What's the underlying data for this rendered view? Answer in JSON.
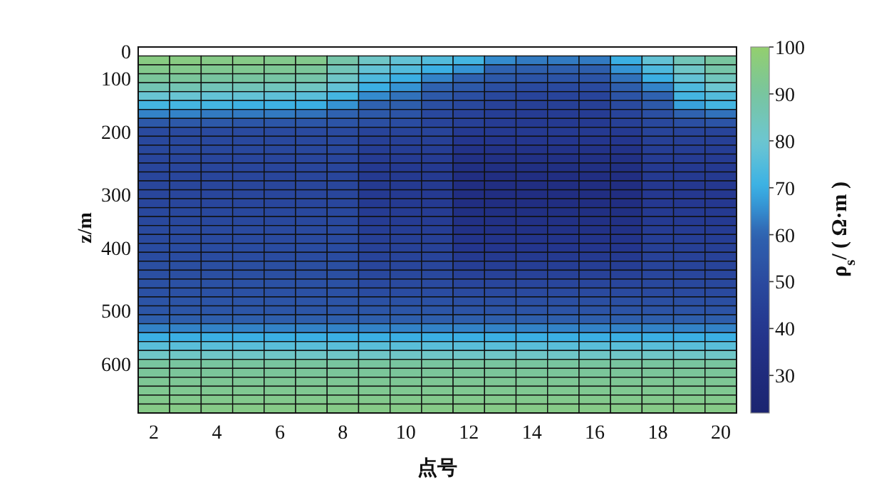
{
  "chart_data": {
    "type": "heatmap",
    "xlabel": "点号",
    "ylabel": "z/m",
    "clabel": "ρ$_{s}$/ ( Ω·m )",
    "categories": [
      "2",
      null,
      "4",
      null,
      "6",
      null,
      "8",
      null,
      "10",
      null,
      "12",
      null,
      "14",
      null,
      "16",
      null,
      "18",
      null,
      "20"
    ],
    "y_categories": [
      "0",
      null,
      null,
      "100",
      null,
      null,
      null,
      null,
      null,
      "200",
      null,
      null,
      null,
      null,
      null,
      null,
      "300",
      null,
      null,
      null,
      null,
      null,
      "400",
      null,
      null,
      null,
      null,
      null,
      null,
      "500",
      null,
      null,
      null,
      null,
      null,
      "600",
      null,
      null,
      null,
      null,
      null
    ],
    "clim": [
      22,
      100
    ],
    "cticks": [
      30,
      40,
      50,
      60,
      70,
      80,
      90,
      100
    ],
    "cells": [
      [
        null,
        null,
        null,
        null,
        null,
        null,
        null,
        null,
        null,
        null,
        null,
        null,
        null,
        null,
        null,
        null,
        null,
        null,
        null
      ],
      [
        96,
        96,
        95,
        95,
        94,
        94,
        88,
        82,
        78,
        75,
        72,
        65,
        63,
        63,
        63,
        70,
        78,
        85,
        90
      ],
      [
        94,
        94,
        93,
        93,
        92,
        91,
        85,
        78,
        75,
        70,
        66,
        60,
        58,
        58,
        58,
        66,
        74,
        82,
        88
      ],
      [
        91,
        91,
        90,
        90,
        89,
        88,
        82,
        74,
        70,
        64,
        60,
        56,
        54,
        54,
        54,
        62,
        70,
        78,
        84
      ],
      [
        86,
        86,
        85,
        85,
        84,
        83,
        78,
        70,
        66,
        60,
        56,
        52,
        50,
        50,
        50,
        58,
        64,
        74,
        80
      ],
      [
        79,
        79,
        78,
        78,
        77,
        76,
        72,
        65,
        62,
        56,
        52,
        49,
        47,
        47,
        47,
        54,
        60,
        72,
        75
      ],
      [
        72,
        72,
        72,
        71,
        71,
        70,
        66,
        60,
        58,
        52,
        49,
        46,
        45,
        45,
        45,
        50,
        56,
        68,
        72
      ],
      [
        64,
        64,
        63,
        63,
        63,
        62,
        60,
        56,
        54,
        49,
        46,
        44,
        43,
        43,
        43,
        47,
        52,
        60,
        62
      ],
      [
        56,
        56,
        56,
        55,
        55,
        55,
        54,
        52,
        51,
        47,
        45,
        43,
        42,
        42,
        42,
        45,
        49,
        52,
        54
      ],
      [
        50,
        50,
        50,
        50,
        50,
        50,
        50,
        47,
        47,
        47,
        42,
        42,
        42,
        42,
        42,
        42,
        47,
        47,
        47
      ],
      [
        49,
        49,
        49,
        49,
        49,
        49,
        49,
        45,
        45,
        45,
        40,
        40,
        40,
        40,
        40,
        40,
        45,
        45,
        45
      ],
      [
        49,
        49,
        49,
        49,
        49,
        49,
        49,
        44,
        44,
        44,
        37,
        37,
        37,
        37,
        37,
        37,
        44,
        44,
        44
      ],
      [
        48,
        48,
        48,
        48,
        48,
        48,
        48,
        43,
        43,
        43,
        35,
        35,
        35,
        35,
        35,
        35,
        43,
        43,
        43
      ],
      [
        48,
        48,
        48,
        48,
        48,
        48,
        48,
        42,
        42,
        42,
        34,
        34,
        34,
        34,
        34,
        34,
        42,
        42,
        42
      ],
      [
        48,
        48,
        48,
        48,
        48,
        48,
        48,
        42,
        42,
        42,
        33,
        33,
        33,
        33,
        33,
        33,
        42,
        42,
        42
      ],
      [
        48,
        48,
        48,
        48,
        48,
        48,
        48,
        42,
        42,
        42,
        33,
        33,
        33,
        33,
        33,
        33,
        41,
        41,
        41
      ],
      [
        48,
        48,
        48,
        48,
        48,
        48,
        48,
        42,
        42,
        42,
        33,
        33,
        33,
        33,
        33,
        33,
        41,
        41,
        41
      ],
      [
        48,
        48,
        48,
        48,
        48,
        48,
        48,
        42,
        42,
        42,
        33,
        33,
        33,
        33,
        33,
        33,
        41,
        41,
        41
      ],
      [
        49,
        49,
        49,
        49,
        49,
        49,
        49,
        43,
        43,
        43,
        34,
        34,
        34,
        34,
        34,
        34,
        42,
        42,
        42
      ],
      [
        49,
        49,
        49,
        49,
        49,
        49,
        49,
        43,
        43,
        43,
        35,
        35,
        35,
        35,
        35,
        35,
        42,
        42,
        42
      ],
      [
        50,
        50,
        50,
        50,
        50,
        50,
        50,
        44,
        44,
        44,
        36,
        36,
        36,
        36,
        36,
        36,
        43,
        43,
        43
      ],
      [
        50,
        50,
        50,
        50,
        50,
        50,
        50,
        45,
        45,
        45,
        38,
        38,
        38,
        38,
        38,
        38,
        44,
        44,
        44
      ],
      [
        51,
        51,
        51,
        51,
        51,
        51,
        51,
        46,
        46,
        46,
        40,
        40,
        40,
        40,
        40,
        40,
        45,
        45,
        45
      ],
      [
        51,
        51,
        51,
        51,
        51,
        51,
        51,
        47,
        47,
        47,
        42,
        42,
        42,
        42,
        42,
        42,
        46,
        46,
        46
      ],
      [
        52,
        52,
        52,
        52,
        52,
        52,
        52,
        48,
        48,
        48,
        44,
        44,
        44,
        44,
        44,
        44,
        47,
        47,
        47
      ],
      [
        52,
        52,
        52,
        52,
        52,
        52,
        52,
        49,
        49,
        49,
        46,
        46,
        46,
        46,
        46,
        46,
        48,
        48,
        48
      ],
      [
        53,
        53,
        53,
        53,
        53,
        53,
        53,
        50,
        50,
        50,
        48,
        48,
        48,
        48,
        48,
        48,
        49,
        49,
        49
      ],
      [
        53,
        53,
        53,
        53,
        53,
        53,
        53,
        51,
        51,
        51,
        50,
        50,
        50,
        50,
        50,
        50,
        50,
        50,
        50
      ],
      [
        54,
        54,
        54,
        54,
        54,
        54,
        54,
        53,
        53,
        53,
        52,
        52,
        52,
        52,
        52,
        52,
        52,
        52,
        52
      ],
      [
        55,
        55,
        55,
        55,
        55,
        55,
        55,
        55,
        55,
        55,
        54,
        54,
        54,
        54,
        54,
        54,
        54,
        54,
        54
      ],
      [
        58,
        58,
        58,
        58,
        58,
        58,
        58,
        58,
        58,
        58,
        58,
        58,
        58,
        58,
        58,
        58,
        58,
        58,
        58
      ],
      [
        64,
        64,
        64,
        64,
        64,
        64,
        64,
        64,
        64,
        64,
        64,
        64,
        64,
        64,
        64,
        64,
        64,
        64,
        64
      ],
      [
        70,
        70,
        70,
        70,
        70,
        70,
        70,
        70,
        70,
        70,
        70,
        70,
        70,
        70,
        70,
        70,
        70,
        70,
        70
      ],
      [
        76,
        76,
        76,
        76,
        76,
        76,
        76,
        76,
        76,
        76,
        76,
        76,
        76,
        76,
        76,
        76,
        76,
        76,
        76
      ],
      [
        82,
        82,
        82,
        82,
        82,
        82,
        82,
        82,
        82,
        82,
        82,
        82,
        82,
        82,
        82,
        82,
        82,
        82,
        82
      ],
      [
        90,
        90,
        90,
        90,
        90,
        90,
        90,
        90,
        90,
        90,
        90,
        90,
        90,
        90,
        90,
        90,
        90,
        90,
        90
      ],
      [
        91,
        91,
        91,
        91,
        91,
        91,
        91,
        91,
        91,
        91,
        91,
        91,
        91,
        91,
        91,
        91,
        91,
        91,
        91
      ],
      [
        92,
        92,
        92,
        92,
        92,
        92,
        92,
        92,
        92,
        92,
        92,
        92,
        92,
        92,
        92,
        92,
        92,
        92,
        92
      ],
      [
        93,
        93,
        93,
        93,
        93,
        93,
        93,
        93,
        93,
        93,
        93,
        93,
        93,
        93,
        93,
        93,
        93,
        93,
        93
      ],
      [
        94,
        94,
        94,
        94,
        94,
        94,
        94,
        94,
        94,
        94,
        94,
        94,
        94,
        94,
        94,
        94,
        94,
        94,
        94
      ],
      [
        95,
        95,
        95,
        95,
        95,
        95,
        95,
        95,
        95,
        95,
        95,
        95,
        95,
        95,
        95,
        95,
        95,
        95,
        95
      ]
    ]
  }
}
